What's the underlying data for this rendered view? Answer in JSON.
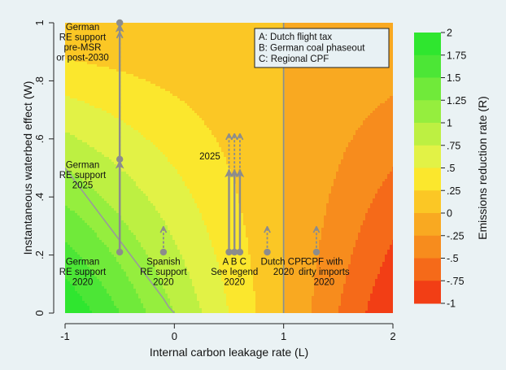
{
  "chart_data": {
    "type": "heatmap",
    "xlabel": "Internal carbon leakage rate (L)",
    "ylabel": "Instantaneous waterbed effect (W)",
    "colorbar_label": "Emissions reduction rate (R)",
    "xlim": [
      -1,
      2
    ],
    "ylim": [
      0,
      1
    ],
    "x_ticks": [
      {
        "value": -1,
        "label": "-1"
      },
      {
        "value": 0,
        "label": "0"
      },
      {
        "value": 1,
        "label": "1"
      },
      {
        "value": 2,
        "label": "2"
      }
    ],
    "y_ticks": [
      {
        "value": 0,
        "label": "0"
      },
      {
        "value": 0.2,
        "label": ".2"
      },
      {
        "value": 0.4,
        "label": ".4"
      },
      {
        "value": 0.6,
        "label": ".6"
      },
      {
        "value": 0.8,
        "label": ".8"
      },
      {
        "value": 1,
        "label": "1"
      }
    ],
    "colorbar_ticks": [
      {
        "value": 2,
        "label": "2"
      },
      {
        "value": 1.75,
        "label": "1.75"
      },
      {
        "value": 1.5,
        "label": "1.5"
      },
      {
        "value": 1.25,
        "label": "1.25"
      },
      {
        "value": 1,
        "label": "1"
      },
      {
        "value": 0.75,
        "label": ".75"
      },
      {
        "value": 0.5,
        "label": ".5"
      },
      {
        "value": 0.25,
        "label": ".25"
      },
      {
        "value": 0,
        "label": "0"
      },
      {
        "value": -0.25,
        "label": "-.25"
      },
      {
        "value": -0.5,
        "label": "-.5"
      },
      {
        "value": -0.75,
        "label": "-.75"
      },
      {
        "value": -1,
        "label": "-1"
      }
    ],
    "color_levels": [
      {
        "from": 1.75,
        "to": 2,
        "color": "#2fe62f"
      },
      {
        "from": 1.5,
        "to": 1.75,
        "color": "#4ce636"
      },
      {
        "from": 1.25,
        "to": 1.5,
        "color": "#70ea3a"
      },
      {
        "from": 1,
        "to": 1.25,
        "color": "#95ee3e"
      },
      {
        "from": 0.75,
        "to": 1,
        "color": "#bdf042"
      },
      {
        "from": 0.5,
        "to": 0.75,
        "color": "#e2f246"
      },
      {
        "from": 0.25,
        "to": 0.5,
        "color": "#fbe72d"
      },
      {
        "from": 0,
        "to": 0.25,
        "color": "#fbc725"
      },
      {
        "from": -0.25,
        "to": 0,
        "color": "#f9a921"
      },
      {
        "from": -0.5,
        "to": -0.25,
        "color": "#f78c1d"
      },
      {
        "from": -0.75,
        "to": -0.5,
        "color": "#f56a19"
      },
      {
        "from": -1,
        "to": -0.75,
        "color": "#f23e15"
      }
    ],
    "reference_line_x": 1,
    "boundary_curve": [
      [
        -1.0,
        0.5
      ],
      [
        -0.8,
        0.4
      ],
      [
        -0.6,
        0.3
      ],
      [
        -0.4,
        0.2
      ],
      [
        -0.2,
        0.1
      ],
      [
        -0.1,
        0.05
      ],
      [
        -0.05,
        0.02
      ],
      [
        0.0,
        0.0
      ]
    ],
    "points": [
      {
        "x": -0.5,
        "y": 0.21,
        "label": [
          "German",
          "RE support",
          "2020"
        ],
        "lx": -0.84,
        "ly": 0.167
      },
      {
        "x": -0.5,
        "y": 0.53,
        "label": [
          "German",
          "RE support",
          "2025"
        ],
        "lx": -0.84,
        "ly": 0.5
      },
      {
        "x": -0.5,
        "y": 1.0,
        "label": [
          "German",
          "RE support",
          "pre-MSR",
          "or post-2030"
        ],
        "lx": -0.84,
        "ly": 0.975
      },
      {
        "x": -0.1,
        "y": 0.21,
        "label": [
          "Spanish",
          "RE support",
          "2020"
        ],
        "lx": -0.1,
        "ly": 0.167
      },
      {
        "x": 0.5,
        "y": 0.21,
        "label": [
          "A B C",
          "See legend",
          "2020"
        ],
        "lx": 0.55,
        "ly": 0.167
      },
      {
        "x": 0.55,
        "y": 0.21,
        "label": [],
        "lx": 0,
        "ly": 0
      },
      {
        "x": 0.6,
        "y": 0.21,
        "label": [],
        "lx": 0,
        "ly": 0
      },
      {
        "x": 0.85,
        "y": 0.21,
        "label": [
          "Dutch CPF",
          "2020"
        ],
        "lx": 1.0,
        "ly": 0.167
      },
      {
        "x": 1.3,
        "y": 0.21,
        "label": [
          "CPF with",
          "dirty imports",
          "2020"
        ],
        "lx": 1.37,
        "ly": 0.167
      }
    ],
    "solid_arrows": [
      {
        "x": -0.5,
        "y1": 0.21,
        "y2": 0.53
      },
      {
        "x": -0.5,
        "y1": 0.21,
        "y2": 1.0
      },
      {
        "x": 0.5,
        "y1": 0.21,
        "y2": 0.5
      },
      {
        "x": 0.55,
        "y1": 0.21,
        "y2": 0.5
      },
      {
        "x": 0.6,
        "y1": 0.21,
        "y2": 0.5
      }
    ],
    "dashed_arrows": [
      {
        "x": -0.5,
        "y1": 0.53,
        "y2": 0.97
      },
      {
        "x": -0.1,
        "y1": 0.21,
        "y2": 0.3
      },
      {
        "x": 0.5,
        "y1": 0.5,
        "y2": 0.62
      },
      {
        "x": 0.55,
        "y1": 0.5,
        "y2": 0.62
      },
      {
        "x": 0.6,
        "y1": 0.5,
        "y2": 0.62
      },
      {
        "x": 0.85,
        "y1": 0.21,
        "y2": 0.3
      },
      {
        "x": 1.3,
        "y1": 0.21,
        "y2": 0.3
      }
    ],
    "text_annotations": [
      {
        "text": "2025",
        "x": 0.42,
        "y": 0.53
      }
    ],
    "legend": {
      "position": "top-right",
      "entries": [
        "A: Dutch flight tax",
        "B: German coal phaseout",
        "C: Regional CPF"
      ]
    },
    "grid": false
  }
}
